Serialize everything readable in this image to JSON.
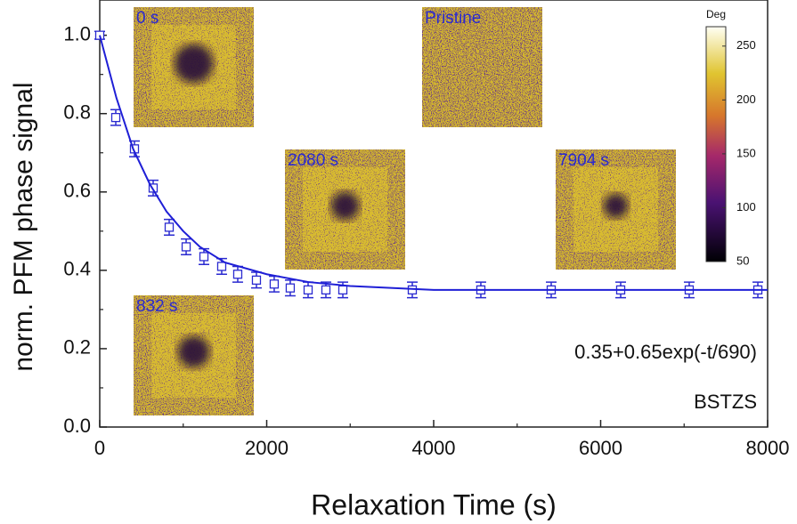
{
  "chart_data": {
    "type": "scatter",
    "xlabel": "Relaxation Time (s)",
    "ylabel": "norm. PFM phase signal",
    "xlim": [
      0,
      8000
    ],
    "ylim": [
      0,
      1.09
    ],
    "xticks": [
      0,
      2000,
      4000,
      6000,
      8000
    ],
    "yticks": [
      {
        "value": 0,
        "label": "0.0"
      },
      0.2,
      0.4,
      0.6,
      0.8,
      {
        "value": 1,
        "label": "1.0"
      }
    ],
    "xminor": [
      1000,
      3000,
      5000,
      7000
    ],
    "yminor": [
      0.1,
      0.3,
      0.5,
      0.7,
      0.9
    ],
    "annotations": [
      "0.35+0.65exp(-t/690)",
      "BSTZS"
    ],
    "series": [
      {
        "type": "scatter",
        "color": "#2a2ad0",
        "x": [
          0,
          192,
          416,
          640,
          832,
          1035,
          1248,
          1461,
          1653,
          1877,
          2090,
          2282,
          2496,
          2709,
          2912,
          3744,
          4565,
          5408,
          6240,
          7061,
          7883
        ],
        "values": [
          1.0,
          0.79,
          0.71,
          0.61,
          0.51,
          0.46,
          0.435,
          0.41,
          0.39,
          0.375,
          0.365,
          0.355,
          0.35,
          0.35,
          0.35,
          0.35,
          0.35,
          0.35,
          0.35,
          0.35,
          0.35
        ],
        "errors": [
          0.01,
          0.02,
          0.02,
          0.02,
          0.02,
          0.02,
          0.02,
          0.02,
          0.02,
          0.02,
          0.02,
          0.02,
          0.02,
          0.02,
          0.02,
          0.02,
          0.02,
          0.02,
          0.02,
          0.02,
          0.02
        ]
      },
      {
        "type": "line",
        "color": "#1f1fd6",
        "x": [
          0,
          200,
          400,
          600,
          800,
          1000,
          1200,
          1500,
          2000,
          2500,
          3000,
          4000,
          6000,
          8000
        ],
        "values": [
          1.0,
          0.84,
          0.71,
          0.62,
          0.55,
          0.5,
          0.46,
          0.42,
          0.39,
          0.37,
          0.36,
          0.35,
          0.35,
          0.35
        ]
      }
    ],
    "insets": [
      {
        "label": "0 s"
      },
      {
        "label": "Pristine"
      },
      {
        "label": "2080 s"
      },
      {
        "label": "7904 s"
      },
      {
        "label": "832 s"
      }
    ],
    "colorbar": {
      "label": "Deg",
      "lim": [
        50,
        268
      ],
      "ticks": [
        50,
        100,
        150,
        200,
        250
      ]
    }
  }
}
